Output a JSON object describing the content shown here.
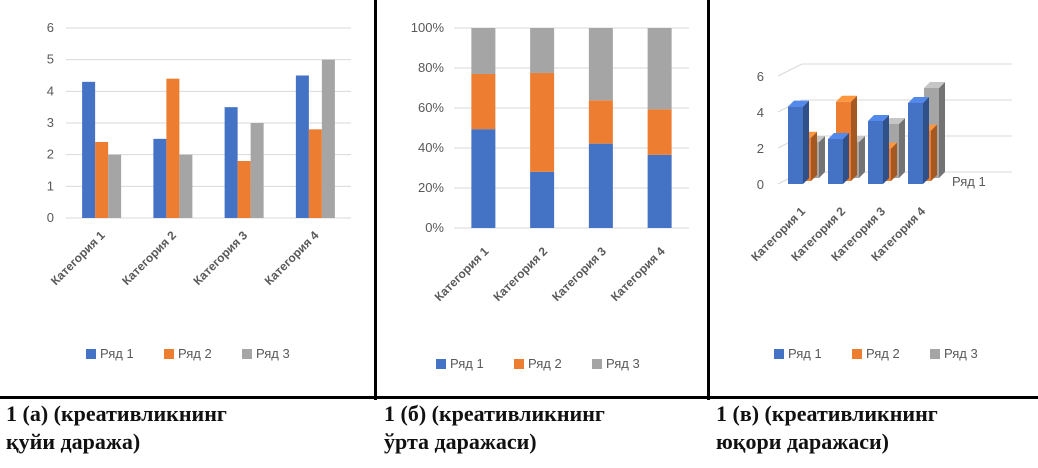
{
  "colors": {
    "s1": "#4472C4",
    "s2": "#ED7D31",
    "s3": "#A5A5A5",
    "grid": "#D9D9D9"
  },
  "chart_data": [
    {
      "type": "bar",
      "categories": [
        "Категория 1",
        "Категория 2",
        "Категория 3",
        "Категория 4"
      ],
      "series": [
        {
          "name": "Ряд 1",
          "values": [
            4.3,
            2.5,
            3.5,
            4.5
          ]
        },
        {
          "name": "Ряд 2",
          "values": [
            2.4,
            4.4,
            1.8,
            2.8
          ]
        },
        {
          "name": "Ряд 3",
          "values": [
            2,
            2,
            3,
            5
          ]
        }
      ],
      "ylim": [
        0,
        6
      ],
      "yticks": [
        "0",
        "1",
        "2",
        "3",
        "4",
        "5",
        "6"
      ],
      "grid": true,
      "legend": "bottom"
    },
    {
      "type": "bar",
      "stacked": "percent",
      "categories": [
        "Категория 1",
        "Категория 2",
        "Категория 3",
        "Категория 4"
      ],
      "series": [
        {
          "name": "Ряд 1",
          "values": [
            4.3,
            2.5,
            3.5,
            4.5
          ]
        },
        {
          "name": "Ряд 2",
          "values": [
            2.4,
            4.4,
            1.8,
            2.8
          ]
        },
        {
          "name": "Ряд 3",
          "values": [
            2,
            2,
            3,
            5
          ]
        }
      ],
      "ylim": [
        0,
        100
      ],
      "yticks": [
        "0%",
        "20%",
        "40%",
        "60%",
        "80%",
        "100%"
      ],
      "grid": true,
      "legend": "bottom"
    },
    {
      "type": "bar",
      "style": "3d",
      "categories": [
        "Категория 1",
        "Категория 2",
        "Категория 3",
        "Категория 4"
      ],
      "series": [
        {
          "name": "Ряд 1",
          "values": [
            4.3,
            2.5,
            3.5,
            4.5
          ]
        },
        {
          "name": "Ряд 2",
          "values": [
            2.4,
            4.4,
            1.8,
            2.8
          ]
        },
        {
          "name": "Ряд 3",
          "values": [
            2,
            2,
            3,
            5
          ]
        }
      ],
      "ylim": [
        0,
        6
      ],
      "yticks": [
        "0",
        "2",
        "4",
        "6"
      ],
      "depth_label": "Ряд 1",
      "grid": true,
      "legend": "bottom"
    }
  ],
  "captions": [
    {
      "line1": "1 (а) (креативликнинг",
      "line2": "қуйи даража)"
    },
    {
      "line1": "1 (б) (креативликнинг",
      "line2": "ўрта даражаси)"
    },
    {
      "line1": "1 (в) (креативликнинг",
      "line2": "юқори даражаси)"
    }
  ]
}
